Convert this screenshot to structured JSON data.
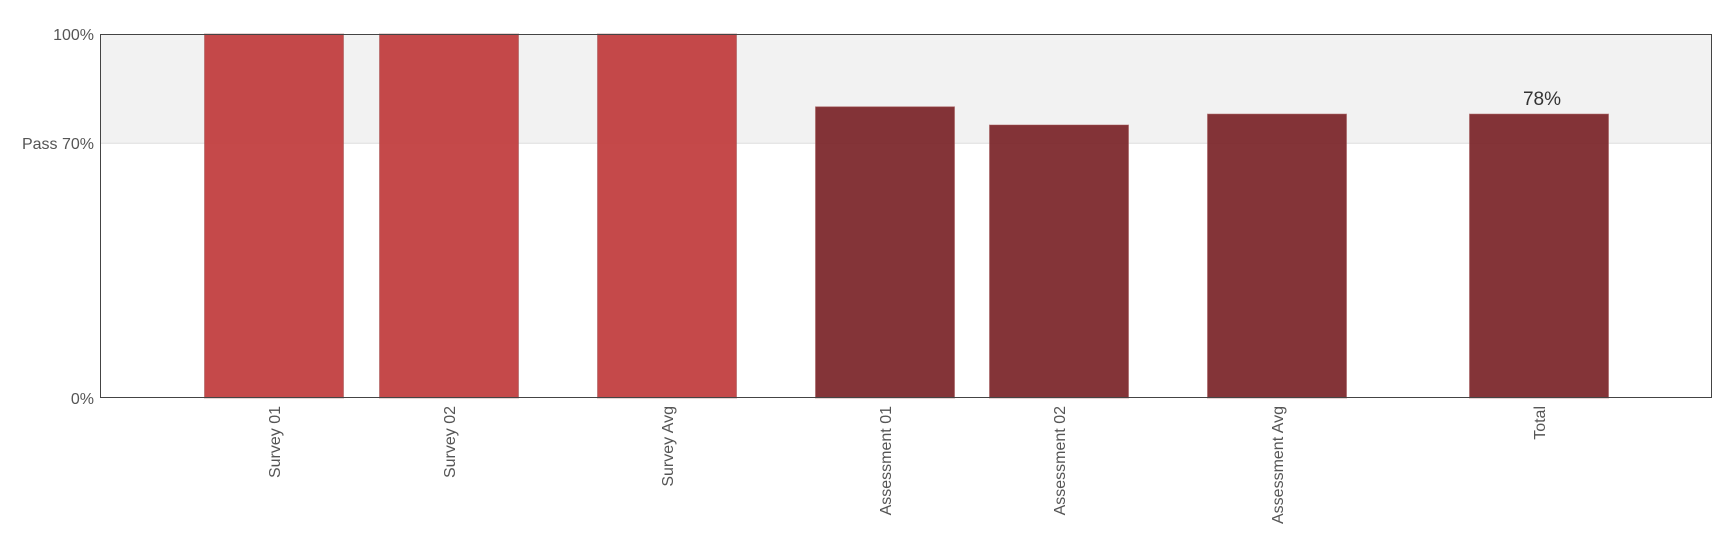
{
  "chart_data": {
    "type": "bar",
    "categories": [
      "Survey 01",
      "Survey 02",
      "Survey Avg",
      "Assessment 01",
      "Assessment 02",
      "Assessment Avg",
      "Total"
    ],
    "values": [
      100,
      100,
      100,
      80,
      75,
      78,
      78
    ],
    "category_groups": [
      "survey",
      "survey",
      "survey",
      "assessment",
      "assessment",
      "assessment",
      "assessment"
    ],
    "group_colors": {
      "survey": "#c0393b",
      "assessment": "#7a2327"
    },
    "y_ticks": [
      {
        "value": 0,
        "label": "0%"
      },
      {
        "value": 70,
        "label": "Pass 70%"
      },
      {
        "value": 100,
        "label": "100%"
      }
    ],
    "pass_band": {
      "from": 70,
      "to": 100,
      "color": "#f2f2f2"
    },
    "ylim": [
      0,
      100
    ],
    "data_labels": [
      {
        "category": "Total",
        "label": "78%"
      }
    ],
    "title": "",
    "xlabel": "",
    "ylabel": "",
    "grid": false
  }
}
